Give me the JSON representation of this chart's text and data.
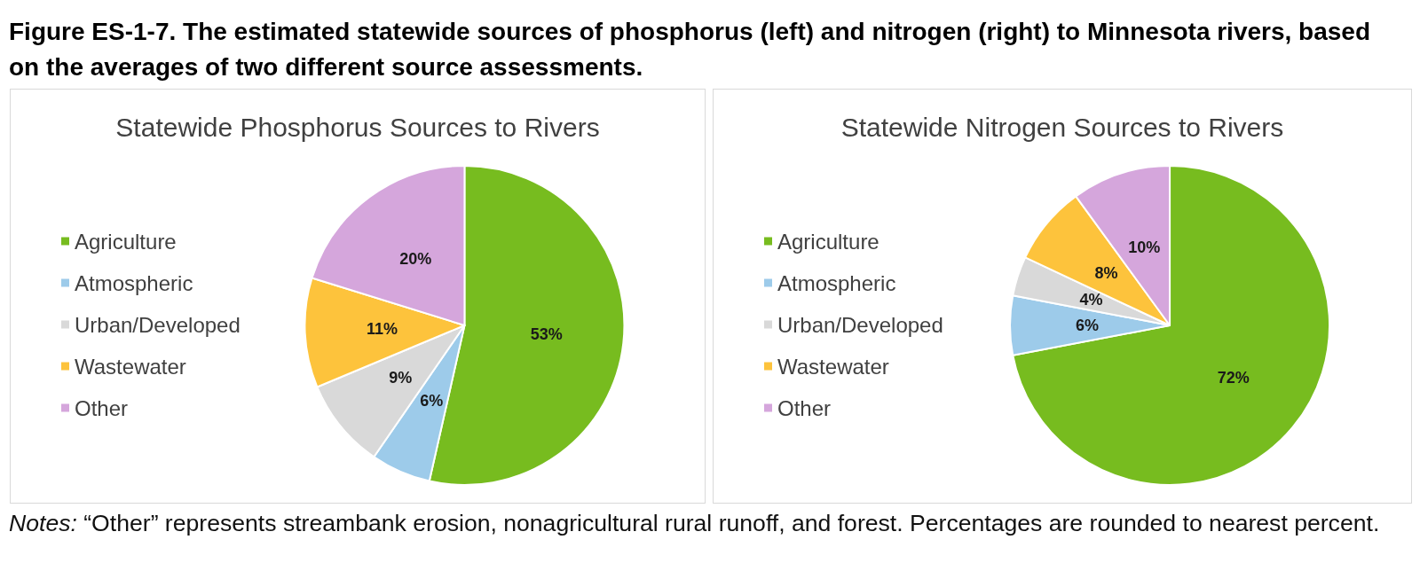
{
  "chart_data": [
    {
      "type": "pie",
      "title": "Statewide Phosphorus Sources to Rivers",
      "categories": [
        "Agriculture",
        "Atmospheric",
        "Urban/Developed",
        "Wastewater",
        "Other"
      ],
      "values": [
        53,
        6,
        9,
        11,
        20
      ],
      "colors": [
        "#77bc1f",
        "#9dcbea",
        "#d9d9d9",
        "#fdc33c",
        "#d5a6dc"
      ],
      "value_labels": [
        "53%",
        "6%",
        "9%",
        "11%",
        "20%"
      ],
      "legend": "left",
      "annotations": [
        "Figure ES-1-7. The estimated statewide sources of phosphorus (left) and nitrogen (right) to Minnesota rivers, based on the averages of two different source assessments."
      ]
    },
    {
      "type": "pie",
      "title": "Statewide Nitrogen Sources to Rivers",
      "categories": [
        "Agriculture",
        "Atmospheric",
        "Urban/Developed",
        "Wastewater",
        "Other"
      ],
      "values": [
        72,
        6,
        4,
        8,
        10
      ],
      "colors": [
        "#77bc1f",
        "#9dcbea",
        "#d9d9d9",
        "#fdc33c",
        "#d5a6dc"
      ],
      "value_labels": [
        "72%",
        "6%",
        "4%",
        "8%",
        "10%"
      ],
      "legend": "left",
      "annotations": [
        "Notes: “Other” represents streambank erosion, nonagricultural rural runoff, and forest. Percentages are rounded to nearest percent."
      ]
    }
  ]
}
